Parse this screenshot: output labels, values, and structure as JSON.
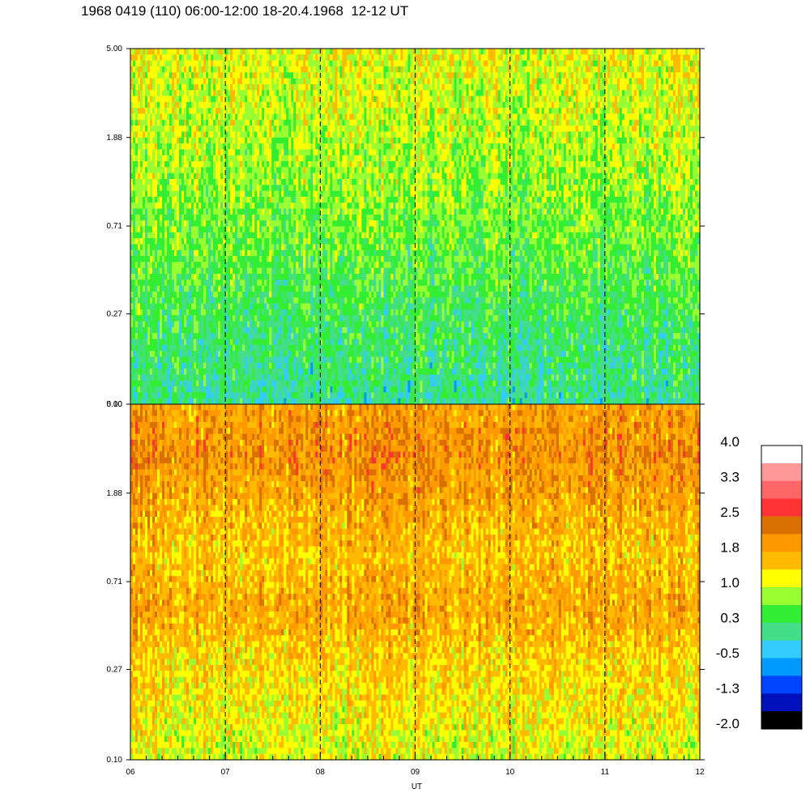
{
  "chart_data": {
    "type": "heatmap",
    "title": "1968 0419 (110) 06:00-12:00 18-20.4.1968  12-12 UT",
    "xlabel": "UT",
    "x_ticks": [
      "06",
      "07",
      "08",
      "09",
      "10",
      "11",
      "12"
    ],
    "x_range_hours": [
      6,
      12
    ],
    "dashed_hour_lines": [
      7,
      8,
      9,
      10,
      11
    ],
    "panels": [
      {
        "name": "upper",
        "y_ticks": [
          "5.00",
          "1.88",
          "0.71",
          "0.27",
          "0.10"
        ],
        "y_range": [
          0.1,
          5.0
        ],
        "y_scale": "log",
        "base_level_by_height": [
          1.15,
          0.95,
          0.75,
          0.5,
          0.25,
          0.05
        ]
      },
      {
        "name": "lower",
        "y_ticks": [
          "5.00",
          "1.88",
          "0.71",
          "0.27",
          "0.10"
        ],
        "y_range": [
          0.1,
          5.0
        ],
        "y_scale": "log",
        "base_level_by_height": [
          1.85,
          2.05,
          1.75,
          1.55,
          1.8,
          1.45,
          1.3,
          1.05
        ]
      }
    ],
    "colorbar": {
      "labels": [
        "4.0",
        "3.3",
        "2.5",
        "1.8",
        "1.0",
        "0.3",
        "-0.5",
        "-1.3",
        "-2.0"
      ],
      "range": [
        -2.0,
        4.0
      ],
      "colors": [
        "#ffffff",
        "#ff9999",
        "#ff6666",
        "#ff3333",
        "#d97000",
        "#ff9900",
        "#ffbb00",
        "#ffff00",
        "#99ff33",
        "#33ee33",
        "#44dd88",
        "#33ccff",
        "#0099ff",
        "#0044ff",
        "#0011bb",
        "#000000"
      ]
    }
  }
}
